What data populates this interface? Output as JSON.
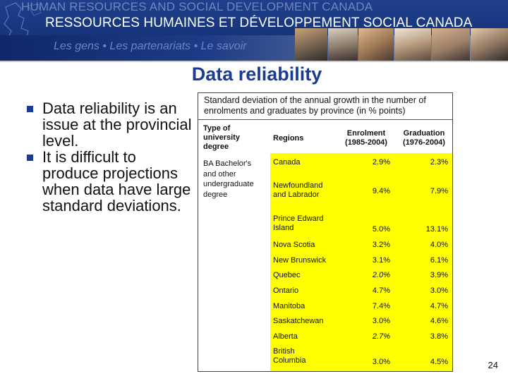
{
  "banner": {
    "line1": "HUMAN RESOURCES AND SOCIAL DEVELOPMENT CANADA",
    "line2": "RESSOURCES HUMAINES ET DÉVELOPPEMENT SOCIAL CANADA",
    "tagline": "Les gens • Les partenariats • Le savoir"
  },
  "slide": {
    "title": "Data reliability",
    "bullets": [
      "Data reliability is an issue at the provincial level.",
      "It is difficult to produce projections when data have large standard deviations."
    ],
    "page_number": "24"
  },
  "table": {
    "caption": "Standard deviation of the annual growth in the number of enrolments and graduates by province (in % points)",
    "headers": {
      "type": "Type of university degree",
      "regions": "Regions",
      "enrolment": "Enrolment (1985-2004)",
      "graduation": "Graduation (1976-2004)"
    },
    "degree_type": "BA Bachelor's and other undergraduate degree",
    "rows": [
      {
        "region": "Canada",
        "enrolment": "2.9%",
        "graduation": "2.3%"
      },
      {
        "region": "Newfoundland and Labrador",
        "enrolment": "9.4%",
        "graduation": "7.9%"
      },
      {
        "region": "Prince Edward Island",
        "enrolment": "5.0%",
        "graduation": "13.1%"
      },
      {
        "region": "Nova Scotia",
        "enrolment": "3.2%",
        "graduation": "4.0%"
      },
      {
        "region": "New Brunswick",
        "enrolment": "3.1%",
        "graduation": "6.1%"
      },
      {
        "region": "Quebec",
        "enrolment": "2.0%",
        "graduation": "3.9%"
      },
      {
        "region": "Ontario",
        "enrolment": "4.7%",
        "graduation": "3.0%"
      },
      {
        "region": "Manitoba",
        "enrolment": "7.4%",
        "graduation": "4.7%"
      },
      {
        "region": "Saskatchewan",
        "enrolment": "3.0%",
        "graduation": "4.6%"
      },
      {
        "region": "Alberta",
        "enrolment": "2.7%",
        "graduation": "3.8%"
      },
      {
        "region": "British Columbia",
        "enrolment": "3.0%",
        "graduation": "4.5%"
      }
    ]
  },
  "colors": {
    "title": "#1b3d91",
    "table_highlight": "#ffff00",
    "banner": "#17357c"
  }
}
